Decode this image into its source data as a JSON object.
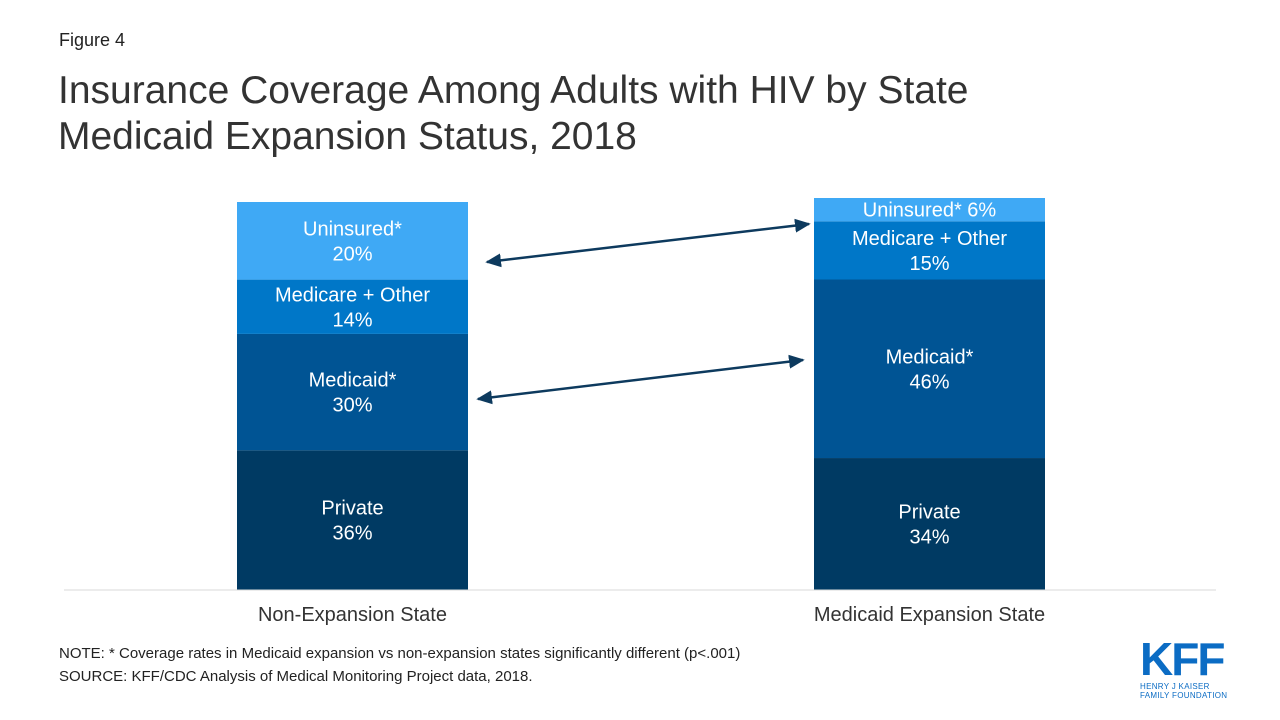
{
  "figure_label": "Figure 4",
  "title": "Insurance Coverage Among Adults with HIV by State\nMedicaid Expansion Status, 2018",
  "note": "NOTE: * Coverage rates in Medicaid expansion vs non-expansion states significantly different (p<.001)",
  "source": "SOURCE: KFF/CDC Analysis of Medical Monitoring Project data, 2018.",
  "logo": {
    "mark": "KFF",
    "line1": "HENRY J KAISER",
    "line2": "FAMILY FOUNDATION"
  },
  "chart_data": {
    "type": "bar",
    "stacked": true,
    "categories": [
      "Non-Expansion State",
      "Medicaid Expansion State"
    ],
    "series": [
      {
        "name": "Private",
        "values": [
          36,
          34
        ],
        "color": "#003a63",
        "labels": [
          "Private\n36%",
          "Private\n34%"
        ]
      },
      {
        "name": "Medicaid*",
        "values": [
          30,
          46
        ],
        "color": "#005494",
        "labels": [
          "Medicaid*\n30%",
          "Medicaid*\n46%"
        ]
      },
      {
        "name": "Medicare + Other",
        "values": [
          14,
          15
        ],
        "color": "#0077c8",
        "labels": [
          "Medicare + Other\n14%",
          "Medicare + Other\n15%"
        ]
      },
      {
        "name": "Uninsured*",
        "values": [
          20,
          6
        ],
        "color": "#3fa9f5",
        "labels": [
          "Uninsured*\n20%",
          "Uninsured* 6%"
        ]
      }
    ],
    "ylim": [
      0,
      100
    ],
    "grid": false,
    "legend": "none",
    "annotations": "double-headed arrows connecting Uninsured* and Medicaid* segments between states"
  }
}
